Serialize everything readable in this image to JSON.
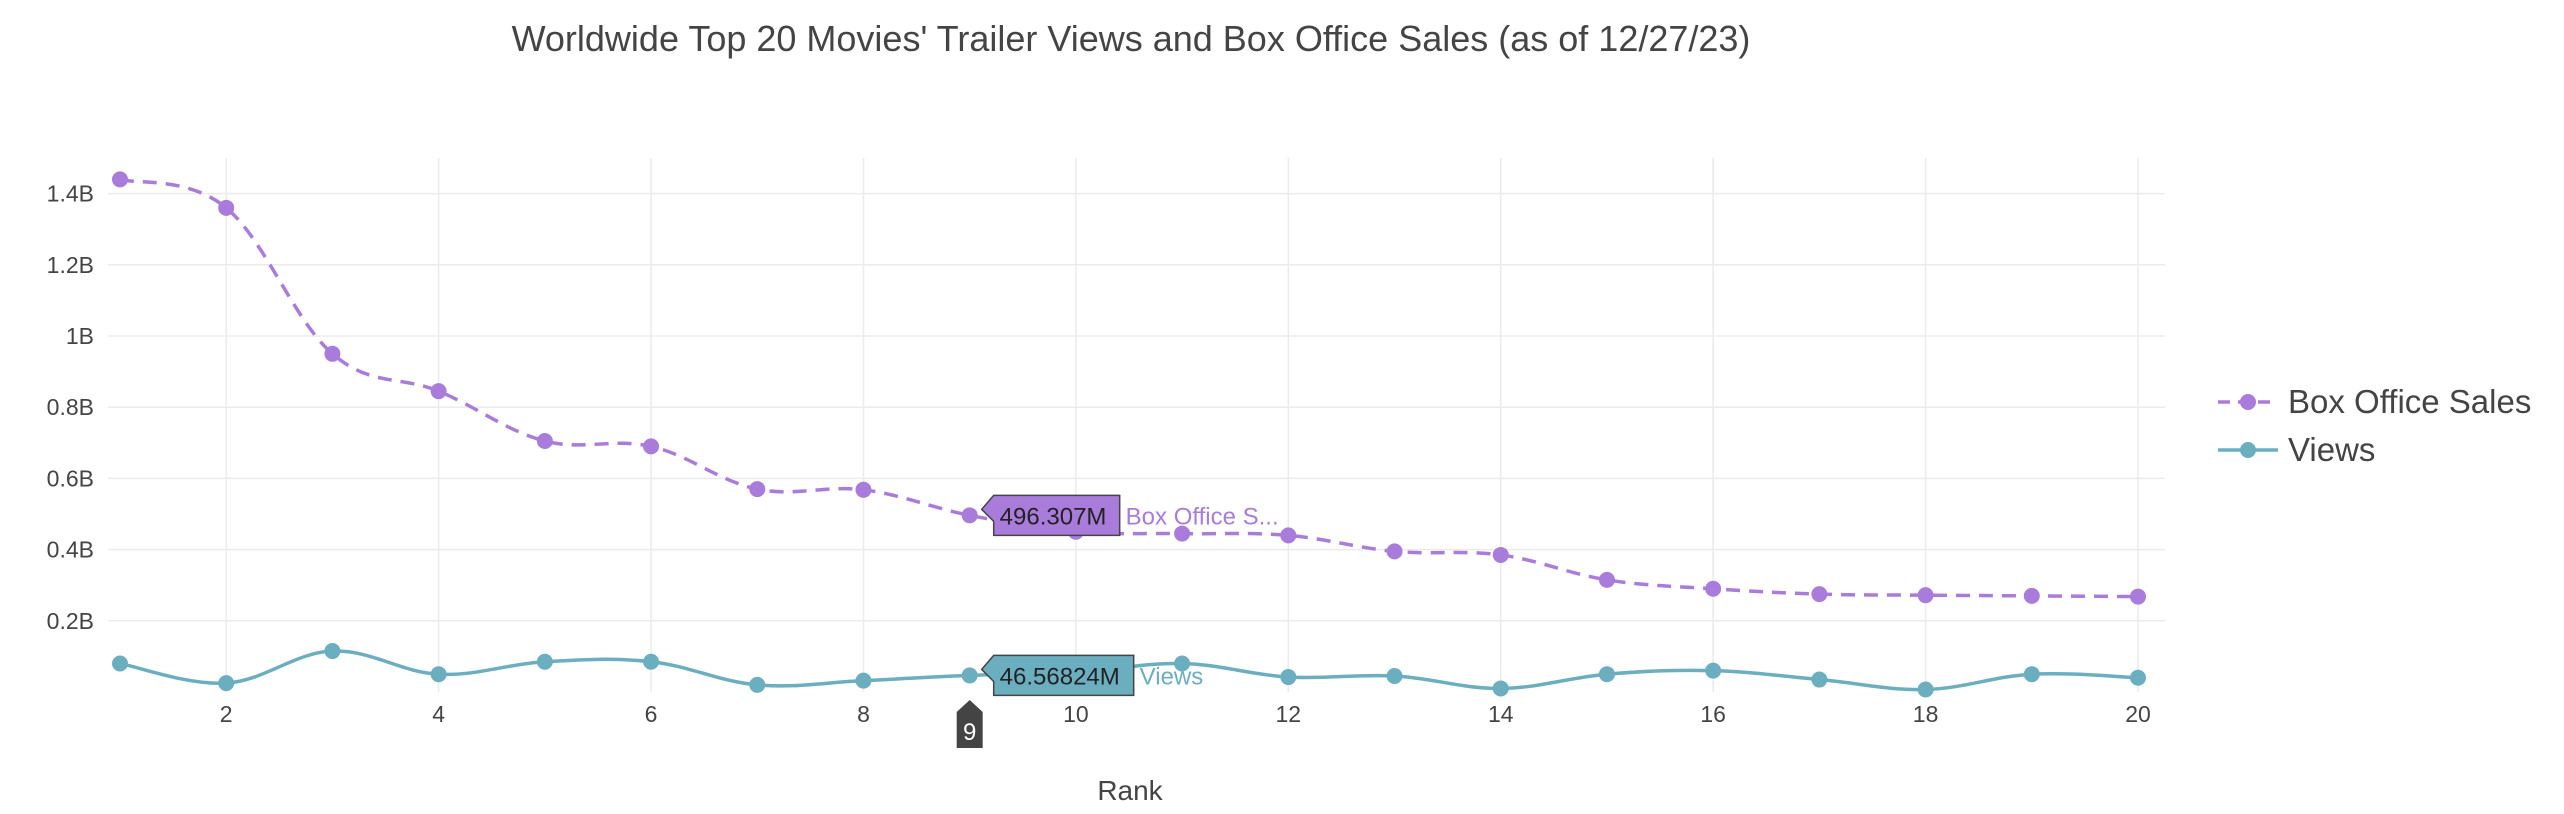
{
  "chart_data": {
    "type": "line",
    "title": "Worldwide Top 20 Movies' Trailer Views and Box Office Sales (as of 12/27/23)",
    "xlabel": "Rank",
    "ylabel": "",
    "xlim": [
      1,
      20
    ],
    "ylim": [
      0,
      1500000000.0
    ],
    "x_ticks": [
      2,
      4,
      6,
      8,
      10,
      12,
      14,
      16,
      18,
      20
    ],
    "x_tick_labels": [
      "2",
      "4",
      "6",
      "8",
      "10",
      "12",
      "14",
      "16",
      "18",
      "20"
    ],
    "y_ticks": [
      200000000.0,
      400000000.0,
      600000000.0,
      800000000.0,
      1000000000.0,
      1200000000.0,
      1400000000.0
    ],
    "y_tick_labels": [
      "0.2B",
      "0.4B",
      "0.6B",
      "0.8B",
      "1B",
      "1.2B",
      "1.4B"
    ],
    "x": [
      1,
      2,
      3,
      4,
      5,
      6,
      7,
      8,
      9,
      10,
      11,
      12,
      13,
      14,
      15,
      16,
      17,
      18,
      19,
      20
    ],
    "grid": true,
    "legend_position": "right",
    "series": [
      {
        "name": "Box Office Sales",
        "color": "#a97bdb",
        "dash": true,
        "values": [
          1440000000.0,
          1360000000.0,
          950000000.0,
          845000000.0,
          705000000.0,
          690000000.0,
          570000000.0,
          568000000.0,
          496307000.0,
          450000000.0,
          445000000.0,
          440000000.0,
          395000000.0,
          385000000.0,
          315000000.0,
          290000000.0,
          275000000.0,
          272000000.0,
          270000000.0,
          268000000.0
        ]
      },
      {
        "name": "Views",
        "color": "#6aaec0",
        "dash": false,
        "values": [
          80000000.0,
          25000000.0,
          115000000.0,
          50000000.0,
          85000000.0,
          85000000.0,
          20000000.0,
          32000000.0,
          46568240.0,
          55000000.0,
          80000000.0,
          42000000.0,
          45000000.0,
          10000000.0,
          50000000.0,
          60000000.0,
          35000000.0,
          7000000.0,
          50000000.0,
          40000000.0
        ]
      }
    ],
    "hover": {
      "x_label": "9",
      "box_value": "496.307M",
      "box_name": "Box Office S...",
      "views_value": "46.56824M",
      "views_name": "Views"
    }
  }
}
